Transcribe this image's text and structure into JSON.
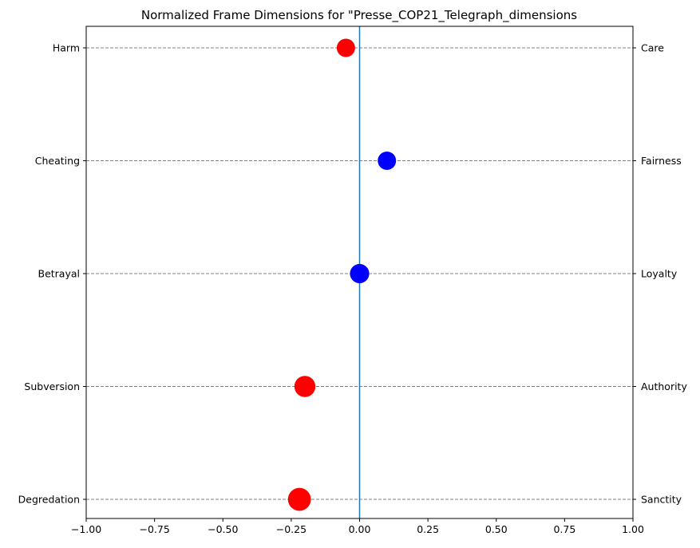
{
  "chart_data": {
    "type": "scatter",
    "title": "Normalized Frame Dimensions for \"Presse_COP21_Telegraph_dimensions",
    "xlim": [
      -1.0,
      1.0
    ],
    "xticks": [
      -1.0,
      -0.75,
      -0.5,
      -0.25,
      0.0,
      0.25,
      0.5,
      0.75,
      1.0
    ],
    "xtick_labels": [
      "−1.00",
      "−0.75",
      "−0.50",
      "−0.25",
      "0.00",
      "0.25",
      "0.50",
      "0.75",
      "1.00"
    ],
    "grid": "horizontal dashed",
    "zero_line": true,
    "dimensions": [
      {
        "left_label": "Harm",
        "right_label": "Care",
        "value": -0.05,
        "color": "#ff0000",
        "size": 1.0
      },
      {
        "left_label": "Cheating",
        "right_label": "Fairness",
        "value": 0.1,
        "color": "#0000ff",
        "size": 1.0
      },
      {
        "left_label": "Betrayal",
        "right_label": "Loyalty",
        "value": 0.0,
        "color": "#0000ff",
        "size": 1.05
      },
      {
        "left_label": "Subversion",
        "right_label": "Authority",
        "value": -0.2,
        "color": "#ff0000",
        "size": 1.15
      },
      {
        "left_label": "Degredation",
        "right_label": "Sanctity",
        "value": -0.22,
        "color": "#ff0000",
        "size": 1.25
      }
    ]
  }
}
